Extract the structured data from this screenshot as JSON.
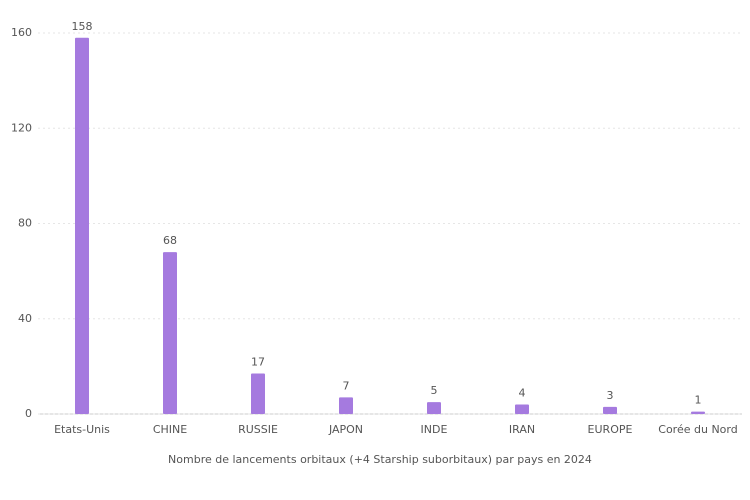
{
  "chart_data": {
    "type": "bar",
    "xlabel": "Nombre de lancements orbitaux (+4 Starship suborbitaux) par pays en 2024",
    "categories": [
      "Etats-Unis",
      "CHINE",
      "RUSSIE",
      "JAPON",
      "INDE",
      "IRAN",
      "EUROPE",
      "Corée du Nord"
    ],
    "values": [
      158,
      68,
      17,
      7,
      5,
      4,
      3,
      1
    ],
    "color": "#a57adf",
    "ylim": [
      0,
      160
    ],
    "yticks": [
      0,
      40,
      80,
      120,
      160
    ],
    "grid": true
  }
}
